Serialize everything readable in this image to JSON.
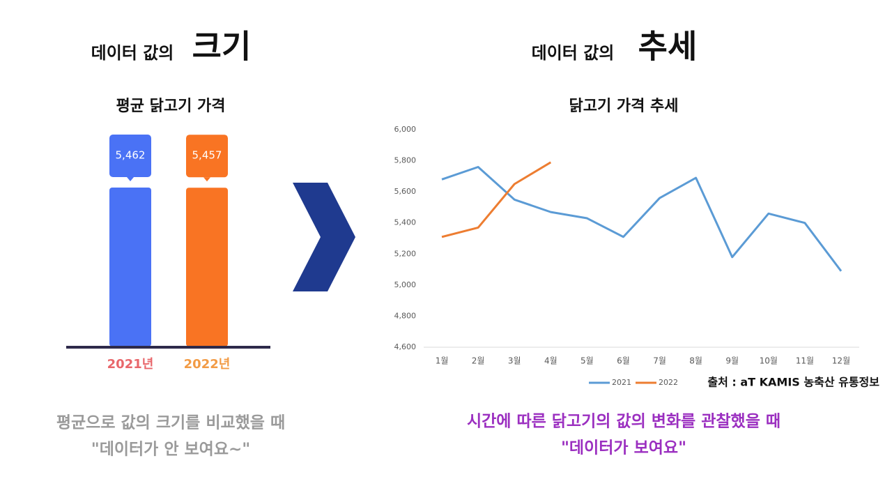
{
  "left_heading": {
    "text": "데이터 값의",
    "emphasis": "크기"
  },
  "right_heading": {
    "text": "데이터 값의",
    "emphasis": "추세"
  },
  "left_caption": [
    "평균으로 값의 크기를 비교했을 때",
    "\"데이터가 안 보여요~\""
  ],
  "right_caption": [
    "시간에 따른 닭고기의 값의 변화를 관찰했을 때",
    "\"데이터가 보여요\""
  ],
  "source": "출처 : aT KAMIS 농축산 유통정보",
  "chart_data": [
    {
      "type": "bar",
      "title": "평균 닭고기 가격",
      "categories": [
        "2021년",
        "2022년"
      ],
      "values": [
        5462,
        5457
      ],
      "value_labels": [
        "5,462",
        "5,457"
      ],
      "colors": [
        "#4a72f5",
        "#f97423"
      ],
      "label_colors": [
        "#e8676b",
        "#f29b45"
      ]
    },
    {
      "type": "line",
      "title": "닭고기 가격 추세",
      "categories": [
        "1월",
        "2월",
        "3월",
        "4월",
        "5월",
        "6월",
        "7월",
        "8월",
        "9월",
        "10월",
        "11월",
        "12월"
      ],
      "series": [
        {
          "name": "2021",
          "color": "#5b9bd5",
          "values": [
            5680,
            5760,
            5550,
            5470,
            5430,
            5310,
            5560,
            5690,
            5180,
            5460,
            5400,
            5090
          ]
        },
        {
          "name": "2022",
          "color": "#ed7d31",
          "values": [
            5310,
            5370,
            5650,
            5790,
            null,
            null,
            null,
            null,
            null,
            null,
            null,
            null
          ]
        }
      ],
      "ylim": [
        4600,
        6000
      ],
      "yticks": [
        {
          "value": 4600,
          "label": "4,600"
        },
        {
          "value": 4800,
          "label": "4,800"
        },
        {
          "value": 5000,
          "label": "5,000"
        },
        {
          "value": 5200,
          "label": "5,200"
        },
        {
          "value": 5400,
          "label": "5,400"
        },
        {
          "value": 5600,
          "label": "5,600"
        },
        {
          "value": 5800,
          "label": "5,800"
        },
        {
          "value": 6000,
          "label": "6,000"
        }
      ],
      "grid": false,
      "legend": "bottom"
    }
  ]
}
